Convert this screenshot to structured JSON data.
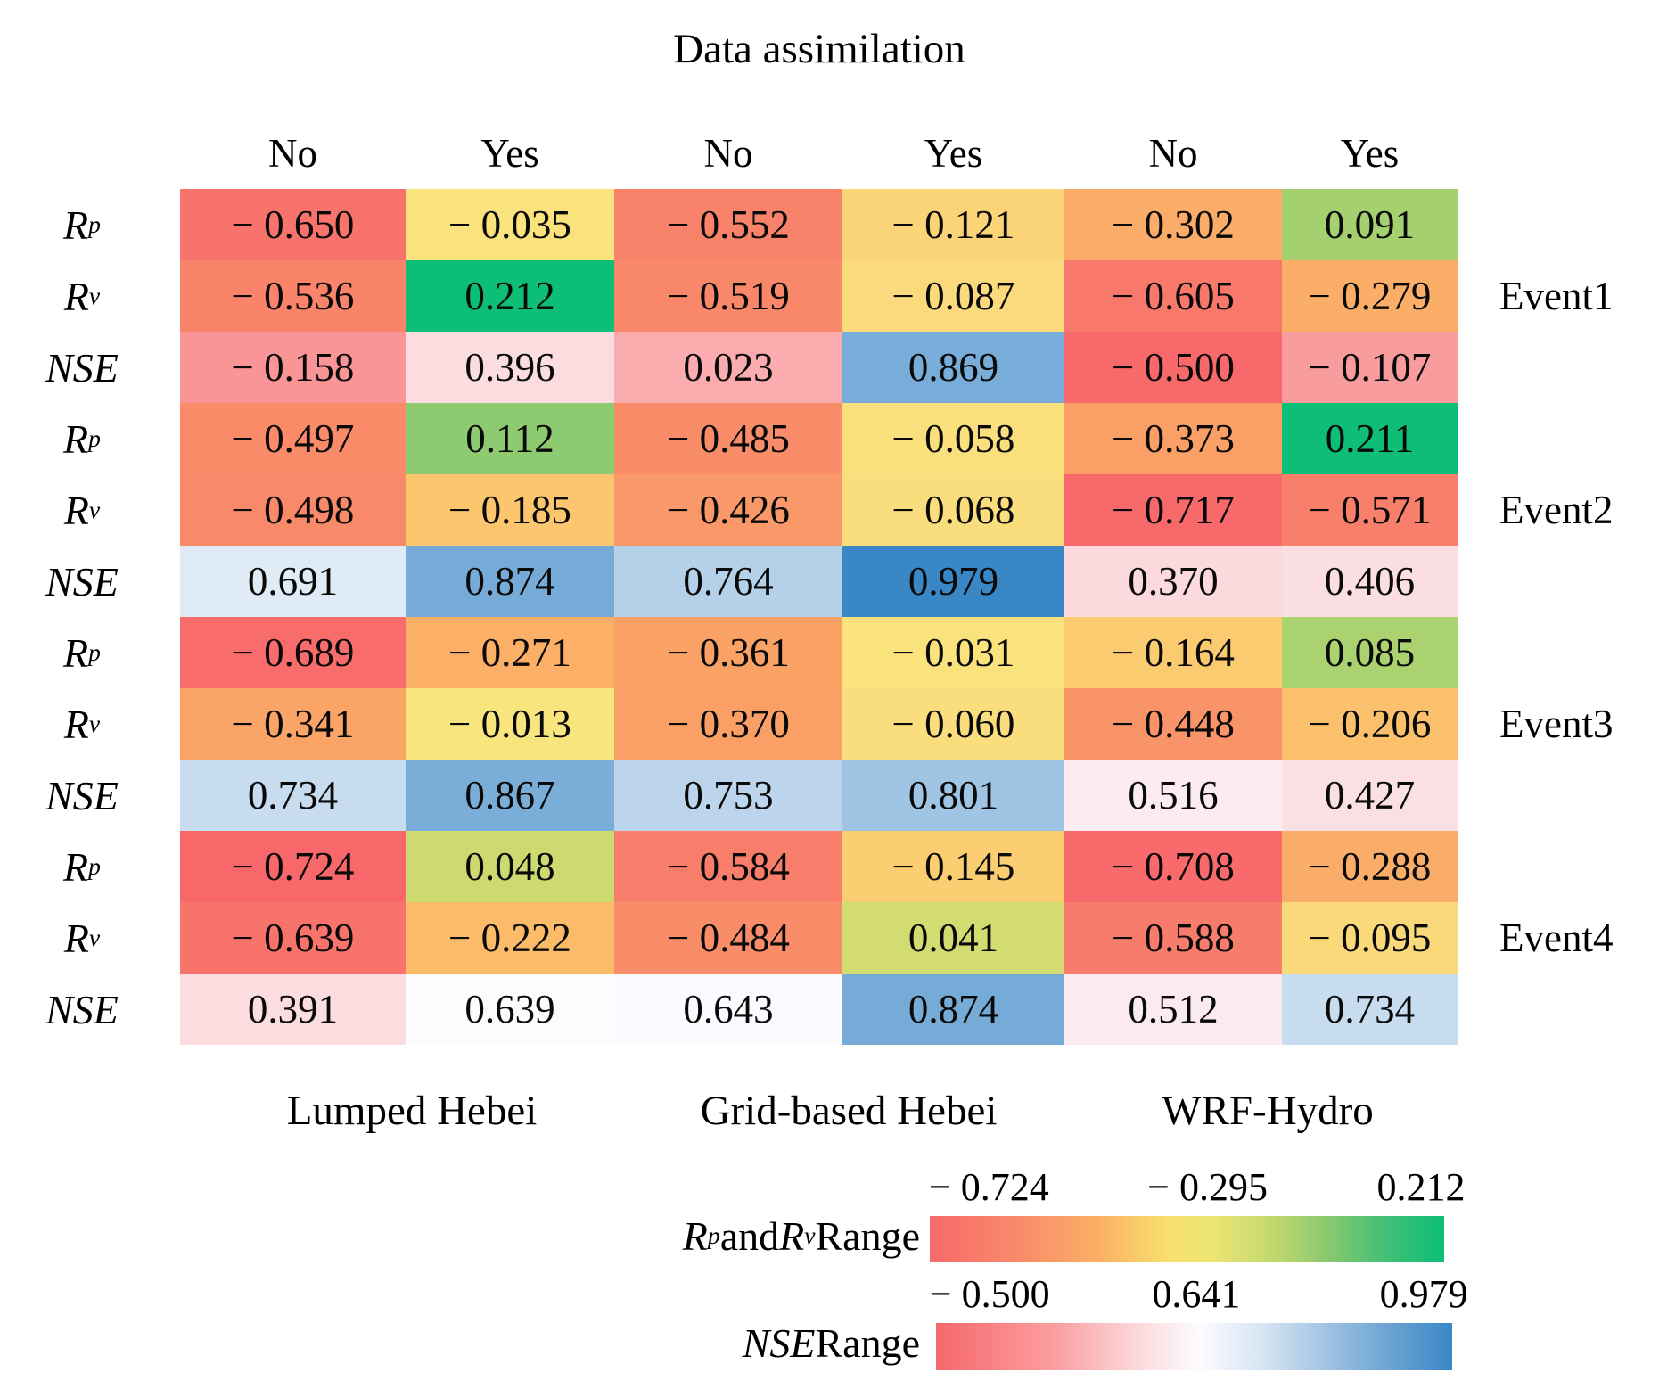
{
  "chart_data": {
    "type": "heatmap",
    "title": "Data assimilation",
    "col_headers": [
      "No",
      "Yes",
      "No",
      "Yes",
      "No",
      "Yes"
    ],
    "models": [
      "Lumped Hebei",
      "Grid-based Hebei",
      "WRF-Hydro"
    ],
    "events": [
      {
        "name": "Event1",
        "rows": [
          {
            "metric": "Rp",
            "values": [
              -0.65,
              -0.035,
              -0.552,
              -0.121,
              -0.302,
              0.091
            ]
          },
          {
            "metric": "Rv",
            "values": [
              -0.536,
              0.212,
              -0.519,
              -0.087,
              -0.605,
              -0.279
            ]
          },
          {
            "metric": "NSE",
            "values": [
              -0.158,
              0.396,
              0.023,
              0.869,
              -0.5,
              -0.107
            ]
          }
        ]
      },
      {
        "name": "Event2",
        "rows": [
          {
            "metric": "Rp",
            "values": [
              -0.497,
              0.112,
              -0.485,
              -0.058,
              -0.373,
              0.211
            ]
          },
          {
            "metric": "Rv",
            "values": [
              -0.498,
              -0.185,
              -0.426,
              -0.068,
              -0.717,
              -0.571
            ]
          },
          {
            "metric": "NSE",
            "values": [
              0.691,
              0.874,
              0.764,
              0.979,
              0.37,
              0.406
            ]
          }
        ]
      },
      {
        "name": "Event3",
        "rows": [
          {
            "metric": "Rp",
            "values": [
              -0.689,
              -0.271,
              -0.361,
              -0.031,
              -0.164,
              0.085
            ]
          },
          {
            "metric": "Rv",
            "values": [
              -0.341,
              -0.013,
              -0.37,
              -0.06,
              -0.448,
              -0.206
            ]
          },
          {
            "metric": "NSE",
            "values": [
              0.734,
              0.867,
              0.753,
              0.801,
              0.516,
              0.427
            ]
          }
        ]
      },
      {
        "name": "Event4",
        "rows": [
          {
            "metric": "Rp",
            "values": [
              -0.724,
              0.048,
              -0.584,
              -0.145,
              -0.708,
              -0.288
            ]
          },
          {
            "metric": "Rv",
            "values": [
              -0.639,
              -0.222,
              -0.484,
              0.041,
              -0.588,
              -0.095
            ]
          },
          {
            "metric": "NSE",
            "values": [
              0.391,
              0.639,
              0.643,
              0.874,
              0.512,
              0.734
            ]
          }
        ]
      }
    ],
    "metric_labels": {
      "Rp": [
        {
          "text": "R",
          "italic": true
        },
        {
          "text": "p",
          "italic": true,
          "sub": true
        }
      ],
      "Rv": [
        {
          "text": "R",
          "italic": true
        },
        {
          "text": "v",
          "italic": true,
          "sub": true
        }
      ],
      "NSE": [
        {
          "text": "NSE",
          "italic": true
        }
      ]
    },
    "legends": [
      {
        "id": "rprv",
        "label_segments": [
          {
            "text": "R",
            "italic": true
          },
          {
            "text": "p",
            "italic": true,
            "sub": true
          },
          {
            "text": " and "
          },
          {
            "text": "R",
            "italic": true
          },
          {
            "text": "v",
            "italic": true,
            "sub": true
          },
          {
            "text": " Range"
          }
        ],
        "ticks": [
          "− 0.724",
          "− 0.295",
          "0.212"
        ],
        "range": [
          -0.724,
          0.212
        ],
        "midpoint_label": -0.295,
        "gradient": [
          "#F8696B 0%",
          "#F98C69 18%",
          "#FBAD66 32%",
          "#F8DF6E 46%",
          "#EDE573 55%",
          "#C0D86F 67%",
          "#8BC96F 77%",
          "#3FBF75 89%",
          "#0DBE76 100%"
        ]
      },
      {
        "id": "nse",
        "label_segments": [
          {
            "text": "NSE",
            "italic": true
          },
          {
            "text": " Range"
          }
        ],
        "ticks": [
          "− 0.500",
          "0.641",
          "0.979"
        ],
        "range": [
          -0.5,
          0.979
        ],
        "midpoint_label": 0.641,
        "gradient": [
          "#F8696B 0%",
          "#FA9B9D 22%",
          "#FCDCDE 40%",
          "#FCFCFF 51%",
          "#D8E5F3 63%",
          "#9FC2E2 76%",
          "#6BA3D3 88%",
          "#3A87C6 100%"
        ]
      }
    ],
    "colormaps": {
      "rprv": [
        [
          -0.724,
          "#F8686B"
        ],
        [
          -0.6,
          "#F87A6B"
        ],
        [
          -0.5,
          "#F98A69"
        ],
        [
          -0.43,
          "#F99768"
        ],
        [
          -0.36,
          "#FAA266"
        ],
        [
          -0.3,
          "#FAAC68"
        ],
        [
          -0.25,
          "#FBB167"
        ],
        [
          -0.2,
          "#FBC26B"
        ],
        [
          -0.15,
          "#FBCE70"
        ],
        [
          -0.1,
          "#FAD87B"
        ],
        [
          -0.05,
          "#FAE07D"
        ],
        [
          -0.01,
          "#F9E57E"
        ],
        [
          0.045,
          "#CFDB6F"
        ],
        [
          0.088,
          "#A7D16F"
        ],
        [
          0.115,
          "#8BC96F"
        ],
        [
          0.212,
          "#0DBE76"
        ]
      ],
      "nse": [
        [
          -0.5,
          "#F8696B"
        ],
        [
          0.641,
          "#FCFCFF"
        ],
        [
          0.979,
          "#3A87C6"
        ]
      ]
    }
  }
}
